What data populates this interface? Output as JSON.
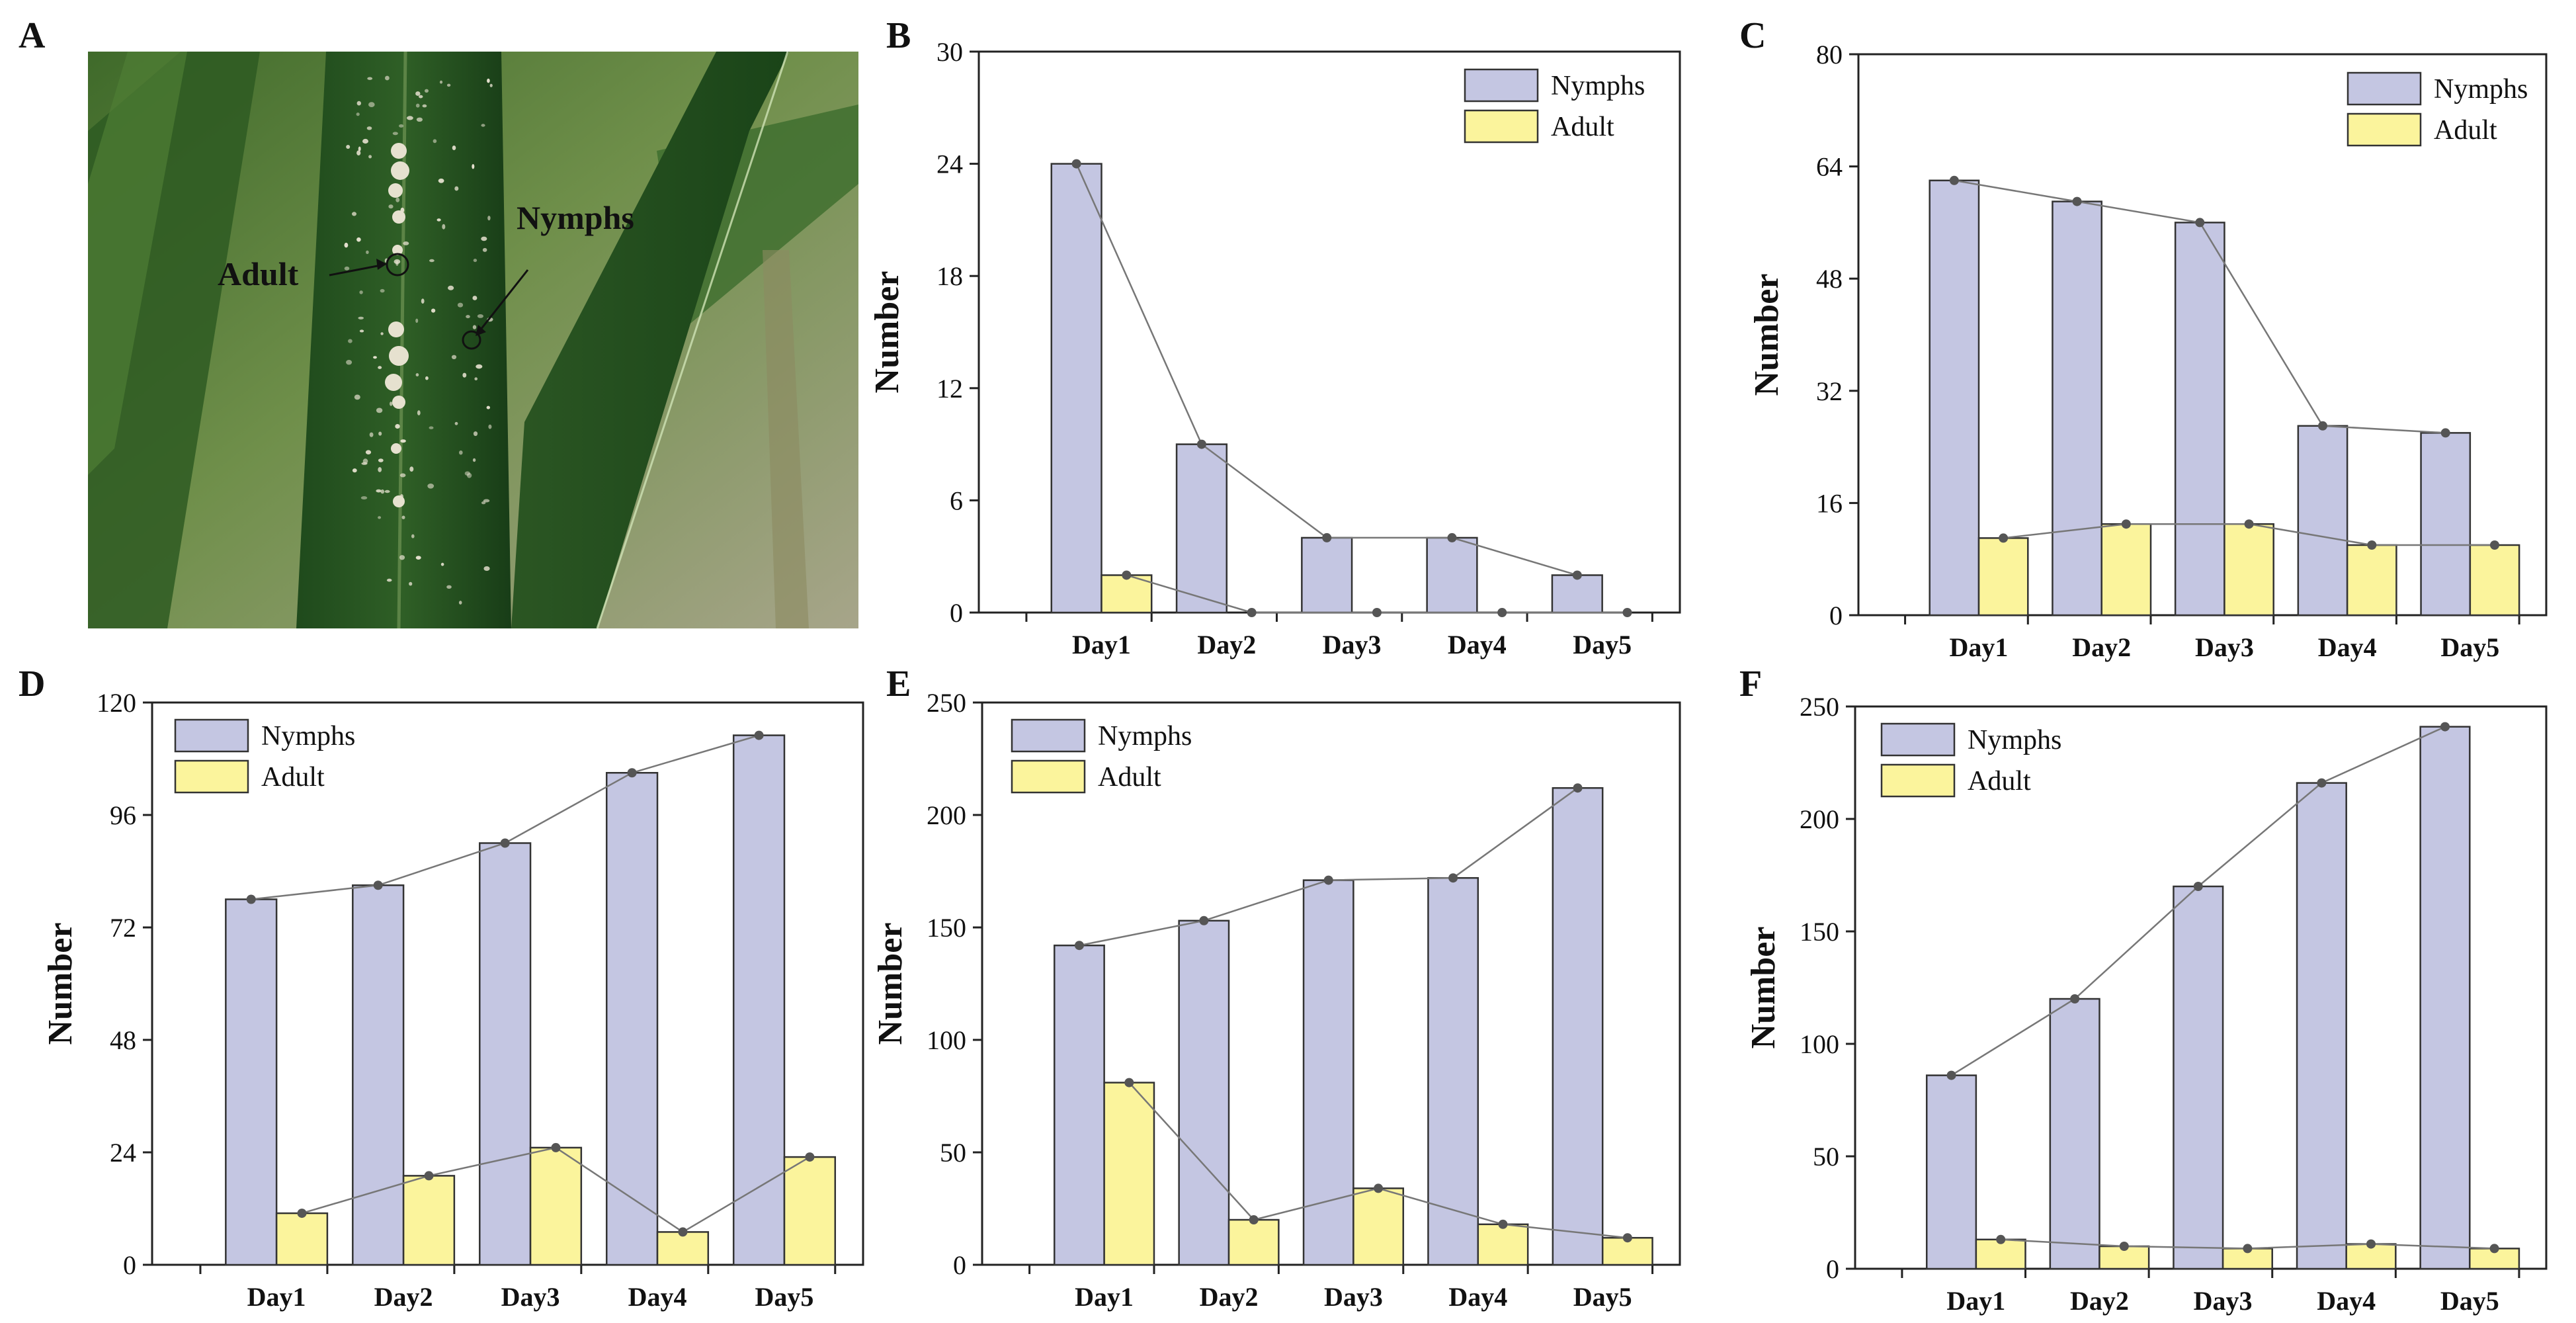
{
  "panels": [
    "A",
    "B",
    "C",
    "D",
    "E",
    "F"
  ],
  "photo": {
    "label_adult": "Adult",
    "label_nymphs": "Nymphs"
  },
  "colors": {
    "nymphs_fill": "#c4c6e2",
    "adult_fill": "#fbf49c",
    "bar_stroke": "#333333",
    "line": "#777777",
    "marker": "#555555"
  },
  "chart_data": [
    {
      "panel": "B",
      "type": "bar",
      "categories": [
        "Day1",
        "Day2",
        "Day3",
        "Day4",
        "Day5"
      ],
      "series": [
        {
          "name": "Nymphs",
          "values": [
            24,
            9,
            4,
            4,
            2
          ]
        },
        {
          "name": "Adult",
          "values": [
            2,
            0,
            0,
            0,
            0
          ]
        }
      ],
      "ylabel": "Number",
      "ylim": [
        0,
        30
      ],
      "yticks": [
        0,
        6,
        12,
        18,
        24,
        30
      ],
      "legend": "top-right",
      "grid": false
    },
    {
      "panel": "C",
      "type": "bar",
      "categories": [
        "Day1",
        "Day2",
        "Day3",
        "Day4",
        "Day5"
      ],
      "series": [
        {
          "name": "Nymphs",
          "values": [
            62,
            59,
            56,
            27,
            26
          ]
        },
        {
          "name": "Adult",
          "values": [
            11,
            13,
            13,
            10,
            10
          ]
        }
      ],
      "ylabel": "Number",
      "ylim": [
        0,
        80
      ],
      "yticks": [
        0,
        16,
        32,
        48,
        64,
        80
      ],
      "legend": "top-right",
      "grid": false
    },
    {
      "panel": "D",
      "type": "bar",
      "categories": [
        "Day1",
        "Day2",
        "Day3",
        "Day4",
        "Day5"
      ],
      "series": [
        {
          "name": "Nymphs",
          "values": [
            78,
            81,
            90,
            105,
            113
          ]
        },
        {
          "name": "Adult",
          "values": [
            11,
            19,
            25,
            7,
            23
          ]
        }
      ],
      "ylabel": "Number",
      "ylim": [
        0,
        120
      ],
      "yticks": [
        0,
        24,
        48,
        72,
        96,
        120
      ],
      "legend": "top-left",
      "grid": false
    },
    {
      "panel": "E",
      "type": "bar",
      "categories": [
        "Day1",
        "Day2",
        "Day3",
        "Day4",
        "Day5"
      ],
      "series": [
        {
          "name": "Nymphs",
          "values": [
            142,
            153,
            171,
            172,
            212
          ]
        },
        {
          "name": "Adult",
          "values": [
            81,
            20,
            34,
            18,
            12
          ]
        }
      ],
      "ylabel": "Number",
      "ylim": [
        0,
        250
      ],
      "yticks": [
        0,
        50,
        100,
        150,
        200,
        250
      ],
      "legend": "top-left",
      "grid": false
    },
    {
      "panel": "F",
      "type": "bar",
      "categories": [
        "Day1",
        "Day2",
        "Day3",
        "Day4",
        "Day5"
      ],
      "series": [
        {
          "name": "Nymphs",
          "values": [
            86,
            120,
            170,
            216,
            241
          ]
        },
        {
          "name": "Adult",
          "values": [
            13,
            10,
            9,
            11,
            9
          ]
        }
      ],
      "ylabel": "Number",
      "ylim": [
        0,
        250
      ],
      "yticks": [
        0,
        50,
        100,
        150,
        200,
        250
      ],
      "legend": "top-left",
      "grid": false
    }
  ]
}
